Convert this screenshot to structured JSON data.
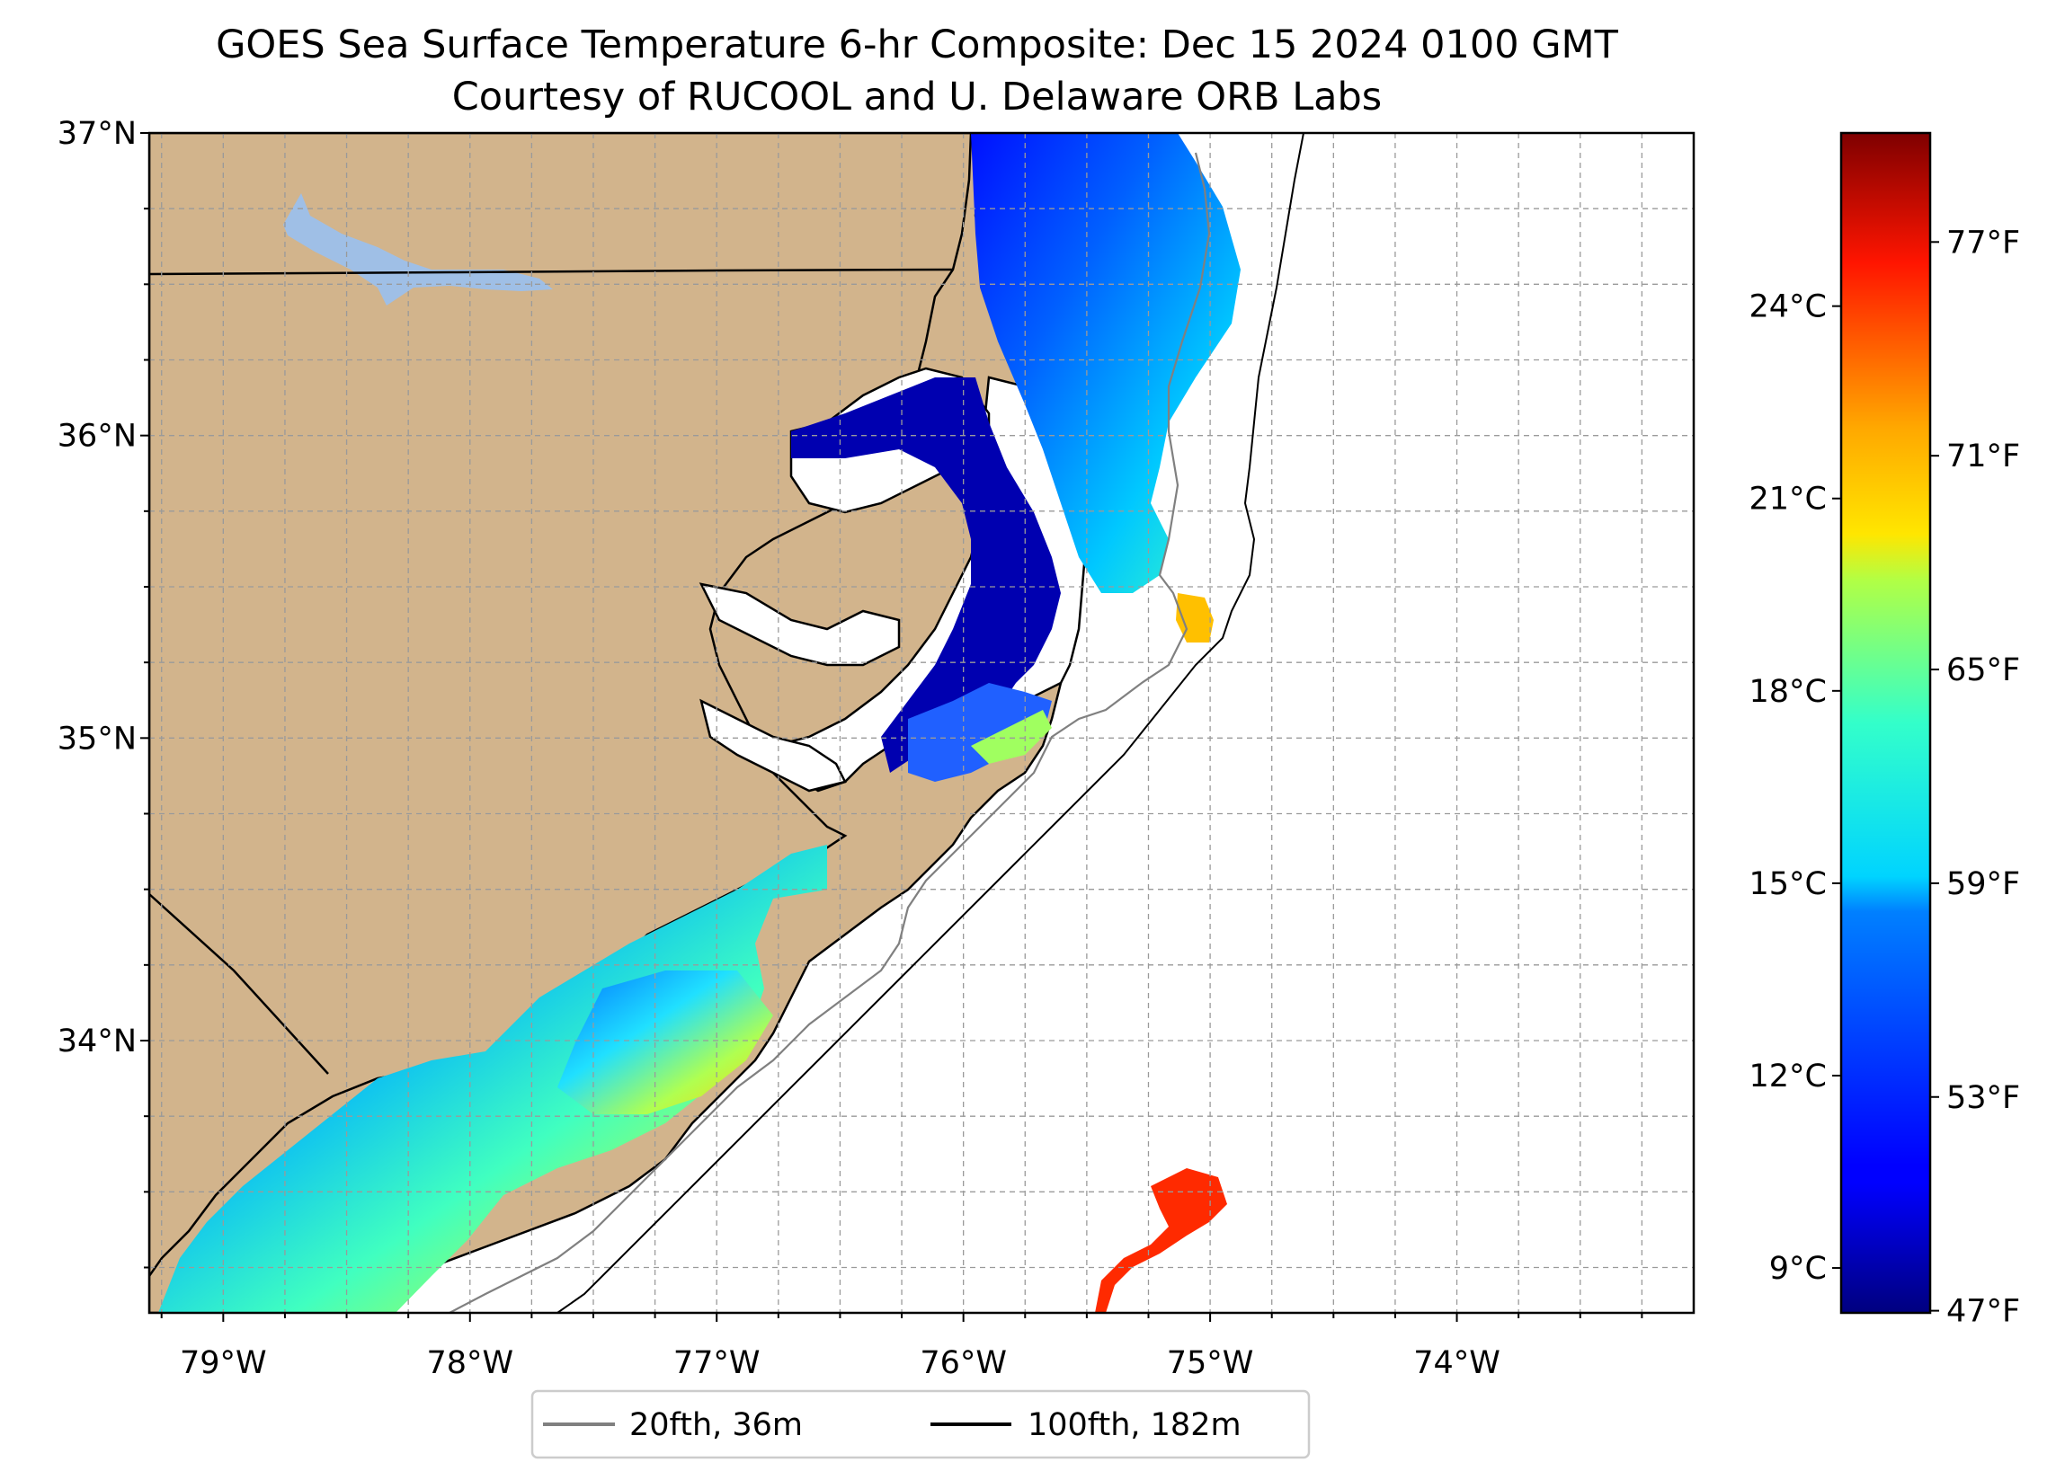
{
  "figure": {
    "title": "GOES Sea Surface Temperature 6-hr Composite: Dec 15 2024 0100 GMT",
    "subtitle": "Courtesy of RUCOOL and U. Delaware ORB Labs"
  },
  "chart_data": {
    "type": "heatmap",
    "map_extent": {
      "lon": [
        -79.3,
        -73.04
      ],
      "lat": [
        33.1,
        37.0
      ]
    },
    "lon_ticks": [
      {
        "value": -79,
        "label": "79°W"
      },
      {
        "value": -78,
        "label": "78°W"
      },
      {
        "value": -77,
        "label": "77°W"
      },
      {
        "value": -76,
        "label": "76°W"
      },
      {
        "value": -75,
        "label": "75°W"
      },
      {
        "value": -74,
        "label": "74°W"
      }
    ],
    "lat_ticks": [
      {
        "value": 34,
        "label": "34°N"
      },
      {
        "value": 35,
        "label": "35°N"
      },
      {
        "value": 36,
        "label": "36°N"
      },
      {
        "value": 37,
        "label": "37°N"
      }
    ],
    "gridlines": true,
    "colorbar": {
      "colormap": "jet",
      "range_c": [
        8.3,
        26.7
      ],
      "celsius_ticks": [
        {
          "value": 9,
          "label": "9°C"
        },
        {
          "value": 12,
          "label": "12°C"
        },
        {
          "value": 15,
          "label": "15°C"
        },
        {
          "value": 18,
          "label": "18°C"
        },
        {
          "value": 21,
          "label": "21°C"
        },
        {
          "value": 24,
          "label": "24°C"
        }
      ],
      "fahrenheit_ticks": [
        {
          "value": 47,
          "label": "47°F"
        },
        {
          "value": 53,
          "label": "53°F"
        },
        {
          "value": 59,
          "label": "59°F"
        },
        {
          "value": 65,
          "label": "65°F"
        },
        {
          "value": 71,
          "label": "71°F"
        },
        {
          "value": 77,
          "label": "77°F"
        }
      ]
    },
    "legend": {
      "placement": "bottom-center",
      "entries": [
        {
          "label": "20fth, 36m",
          "color": "#808080"
        },
        {
          "label": "100fth, 182m",
          "color": "#000000"
        }
      ]
    },
    "colors": {
      "land": "#d2b48c",
      "lakes": "#9fbfe6",
      "no_data": "#ffffff"
    }
  }
}
